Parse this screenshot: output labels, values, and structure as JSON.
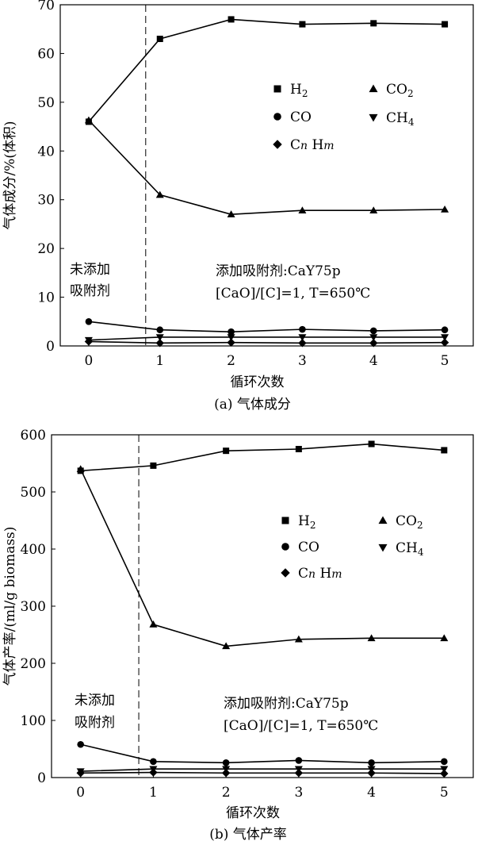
{
  "chart_data": [
    {
      "type": "line",
      "title": "",
      "caption": "(a) 气体成分",
      "xlabel": "循环次数",
      "ylabel": "气体成分/%(体积)",
      "x": [
        0,
        1,
        2,
        3,
        4,
        5
      ],
      "xlim": [
        -0.4,
        5.4
      ],
      "ylim": [
        0,
        70
      ],
      "yticks": [
        0,
        10,
        20,
        30,
        40,
        50,
        60,
        70
      ],
      "grid": false,
      "legend_position": "upper-right",
      "divider_x": 0.8,
      "annotations": {
        "left_line1": "未添加",
        "left_line2": "吸附剂",
        "right_line1": "添加吸附剂:CaY75p",
        "right_line2": "[CaO]/[C]=1, T=650℃"
      },
      "series": [
        {
          "name": "H2",
          "label_main": "H",
          "label_sub": "2",
          "marker": "square",
          "values": [
            46,
            63,
            67,
            66,
            66.2,
            66
          ]
        },
        {
          "name": "CO2",
          "label_main": "CO",
          "label_sub": "2",
          "marker": "triangle-up",
          "values": [
            46.3,
            31,
            27,
            27.8,
            27.8,
            28
          ]
        },
        {
          "name": "CO",
          "label_main": "CO",
          "label_sub": "",
          "marker": "circle",
          "values": [
            5,
            3.3,
            2.9,
            3.4,
            3.1,
            3.3
          ]
        },
        {
          "name": "CH4",
          "label_main": "CH",
          "label_sub": "4",
          "marker": "triangle-down",
          "values": [
            1.2,
            1.8,
            1.8,
            1.8,
            1.8,
            1.8
          ]
        },
        {
          "name": "CnHm",
          "label_main": "CnHm",
          "label_sub": "",
          "marker": "diamond",
          "values": [
            0.9,
            0.6,
            0.7,
            0.6,
            0.6,
            0.7
          ]
        }
      ]
    },
    {
      "type": "line",
      "title": "",
      "caption": "(b) 气体产率",
      "xlabel": "循环次数",
      "ylabel": "气体产率/(ml/g biomass)",
      "x": [
        0,
        1,
        2,
        3,
        4,
        5
      ],
      "xlim": [
        -0.4,
        5.4
      ],
      "ylim": [
        0,
        600
      ],
      "yticks": [
        0,
        100,
        200,
        300,
        400,
        500,
        600
      ],
      "grid": false,
      "legend_position": "upper-right",
      "divider_x": 0.8,
      "annotations": {
        "left_line1": "未添加",
        "left_line2": "吸附剂",
        "right_line1": "添加吸附剂:CaY75p",
        "right_line2": "[CaO]/[C]=1, T=650℃"
      },
      "series": [
        {
          "name": "H2",
          "label_main": "H",
          "label_sub": "2",
          "marker": "square",
          "values": [
            537,
            546,
            572,
            575,
            584,
            573
          ]
        },
        {
          "name": "CO2",
          "label_main": "CO",
          "label_sub": "2",
          "marker": "triangle-up",
          "values": [
            540,
            268,
            230,
            242,
            244,
            244
          ]
        },
        {
          "name": "CO",
          "label_main": "CO",
          "label_sub": "",
          "marker": "circle",
          "values": [
            58,
            28,
            26,
            30,
            26,
            28
          ]
        },
        {
          "name": "CH4",
          "label_main": "CH",
          "label_sub": "4",
          "marker": "triangle-down",
          "values": [
            11,
            15,
            15,
            15,
            15,
            15
          ]
        },
        {
          "name": "CnHm",
          "label_main": "CnHm",
          "label_sub": "",
          "marker": "diamond",
          "values": [
            8,
            9,
            8,
            8,
            8,
            7
          ]
        }
      ]
    }
  ]
}
